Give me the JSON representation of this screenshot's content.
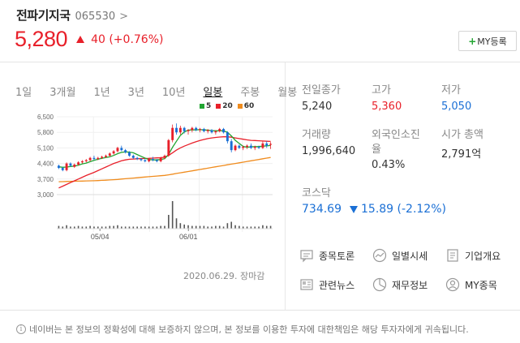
{
  "stock": {
    "name": "전파기지국",
    "code": "065530",
    "price": "5,280",
    "change": "40 (+0.76%)"
  },
  "my_button": "MY등록",
  "period_tabs": [
    "1일",
    "3개월",
    "1년",
    "3년",
    "10년",
    "일봉",
    "주봉",
    "월봉"
  ],
  "selected_tab": "일봉",
  "legend": [
    {
      "label": "5",
      "color": "#21a531"
    },
    {
      "label": "20",
      "color": "#e8202a"
    },
    {
      "label": "60",
      "color": "#f08c1e"
    }
  ],
  "date_note": "2020.06.29. 장마감",
  "stats": {
    "prev_close_label": "전일종가",
    "prev_close": "5,240",
    "high_label": "고가",
    "high": "5,360",
    "low_label": "저가",
    "low": "5,050",
    "volume_label": "거래량",
    "volume": "1,996,640",
    "foreign_label": "외국인소진율",
    "foreign": "0.43%",
    "mcap_label": "시가 총액",
    "mcap": "2,791억"
  },
  "kosdaq": {
    "label": "코스닥",
    "value": "734.69",
    "change": "15.89 (-2.12%)"
  },
  "menu": {
    "forum": "종목토론",
    "daily": "일별시세",
    "company": "기업개요",
    "news": "관련뉴스",
    "financial": "재무정보",
    "my_stocks": "MY종목"
  },
  "disclaimer": "네이버는 본 정보의 정확성에 대해 보증하지 않으며, 본 정보를 이용한 투자에 대한책임은 해당 투자자에게 귀속됩니다.",
  "chart_data": {
    "type": "candlestick",
    "yticks": [
      "6,500",
      "5,800",
      "5,100",
      "4,400",
      "3,700",
      "3,000"
    ],
    "ylim": [
      3000,
      6500
    ],
    "xticks": [
      "05/04",
      "06/01"
    ],
    "candles": [
      [
        4300,
        4350,
        4150,
        4200
      ],
      [
        4200,
        4250,
        4050,
        4100
      ],
      [
        4100,
        4450,
        4050,
        4400
      ],
      [
        4400,
        4450,
        4250,
        4300
      ],
      [
        4250,
        4400,
        4200,
        4350
      ],
      [
        4350,
        4500,
        4300,
        4450
      ],
      [
        4450,
        4550,
        4400,
        4500
      ],
      [
        4500,
        4600,
        4450,
        4550
      ],
      [
        4550,
        4700,
        4500,
        4650
      ],
      [
        4650,
        4750,
        4550,
        4600
      ],
      [
        4600,
        4700,
        4550,
        4650
      ],
      [
        4650,
        4750,
        4600,
        4700
      ],
      [
        4700,
        4800,
        4650,
        4750
      ],
      [
        4750,
        4900,
        4700,
        4850
      ],
      [
        4850,
        5000,
        4800,
        4950
      ],
      [
        4950,
        5150,
        4900,
        5100
      ],
      [
        5100,
        5200,
        4950,
        5000
      ],
      [
        5000,
        5050,
        4850,
        4900
      ],
      [
        4900,
        4950,
        4700,
        4750
      ],
      [
        4750,
        4800,
        4600,
        4650
      ],
      [
        4650,
        4700,
        4550,
        4600
      ],
      [
        4600,
        4650,
        4500,
        4550
      ],
      [
        4550,
        4600,
        4450,
        4500
      ],
      [
        4500,
        4650,
        4450,
        4600
      ],
      [
        4600,
        4700,
        4500,
        4550
      ],
      [
        4550,
        4600,
        4450,
        4500
      ],
      [
        4500,
        4700,
        4450,
        4650
      ],
      [
        4650,
        4800,
        4600,
        4750
      ],
      [
        4750,
        5500,
        4700,
        5450
      ],
      [
        5450,
        6150,
        5350,
        6000
      ],
      [
        6000,
        6200,
        5700,
        5800
      ],
      [
        5800,
        6100,
        5700,
        6000
      ],
      [
        6000,
        6050,
        5750,
        5850
      ],
      [
        5850,
        5950,
        5700,
        5900
      ],
      [
        5900,
        6050,
        5800,
        6000
      ],
      [
        6000,
        6050,
        5850,
        5900
      ],
      [
        5900,
        6000,
        5800,
        5950
      ],
      [
        5950,
        6000,
        5800,
        5850
      ],
      [
        5850,
        5950,
        5750,
        5900
      ],
      [
        5900,
        5950,
        5750,
        5800
      ],
      [
        5800,
        5900,
        5700,
        5850
      ],
      [
        5850,
        6000,
        5800,
        5950
      ],
      [
        5950,
        6000,
        5750,
        5800
      ],
      [
        5800,
        5850,
        5300,
        5400
      ],
      [
        5400,
        5500,
        4900,
        5000
      ],
      [
        5000,
        5250,
        4950,
        5200
      ],
      [
        5200,
        5250,
        5050,
        5100
      ],
      [
        5100,
        5200,
        5000,
        5150
      ],
      [
        5150,
        5250,
        5050,
        5200
      ],
      [
        5200,
        5300,
        5050,
        5100
      ],
      [
        5100,
        5200,
        5000,
        5150
      ],
      [
        5150,
        5200,
        5050,
        5100
      ],
      [
        5100,
        5400,
        5050,
        5300
      ],
      [
        5300,
        5400,
        5100,
        5200
      ],
      [
        5240,
        5360,
        5050,
        5280
      ]
    ],
    "ma5": [
      4250,
      4230,
      4240,
      4260,
      4280,
      4320,
      4380,
      4420,
      4480,
      4540,
      4590,
      4630,
      4670,
      4700,
      4760,
      4840,
      4900,
      4920,
      4910,
      4880,
      4800,
      4720,
      4640,
      4580,
      4560,
      4560,
      4580,
      4620,
      4800,
      5130,
      5400,
      5660,
      5820,
      5900,
      5910,
      5910,
      5920,
      5910,
      5900,
      5880,
      5870,
      5870,
      5870,
      5800,
      5640,
      5440,
      5300,
      5170,
      5130,
      5150,
      5160,
      5160,
      5180,
      5190,
      5210
    ],
    "ma20": [
      3300,
      3380,
      3460,
      3540,
      3620,
      3700,
      3780,
      3860,
      3930,
      4000,
      4080,
      4160,
      4240,
      4320,
      4400,
      4460,
      4520,
      4560,
      4590,
      4600,
      4610,
      4620,
      4625,
      4630,
      4640,
      4650,
      4660,
      4680,
      4760,
      4880,
      5000,
      5100,
      5180,
      5250,
      5320,
      5380,
      5430,
      5480,
      5520,
      5550,
      5570,
      5590,
      5600,
      5600,
      5580,
      5550,
      5520,
      5490,
      5460,
      5440,
      5430,
      5420,
      5410,
      5400,
      5390
    ],
    "ma60": [
      3580,
      3585,
      3590,
      3595,
      3600,
      3605,
      3610,
      3615,
      3620,
      3625,
      3630,
      3640,
      3650,
      3660,
      3670,
      3680,
      3700,
      3715,
      3730,
      3745,
      3760,
      3775,
      3790,
      3805,
      3820,
      3835,
      3850,
      3865,
      3890,
      3920,
      3950,
      3980,
      4010,
      4040,
      4070,
      4100,
      4130,
      4160,
      4190,
      4220,
      4250,
      4280,
      4310,
      4340,
      4370,
      4400,
      4430,
      4460,
      4490,
      4520,
      4550,
      4580,
      4610,
      4640,
      4670
    ],
    "volumes": [
      4,
      3,
      5,
      3,
      3,
      4,
      3,
      3,
      4,
      3,
      3,
      3,
      3,
      4,
      4,
      5,
      3,
      3,
      3,
      3,
      3,
      3,
      3,
      3,
      3,
      3,
      4,
      4,
      20,
      40,
      15,
      8,
      6,
      5,
      4,
      4,
      4,
      4,
      3,
      3,
      4,
      4,
      3,
      8,
      10,
      5,
      4,
      3,
      3,
      3,
      3,
      3,
      5,
      4,
      4
    ]
  }
}
